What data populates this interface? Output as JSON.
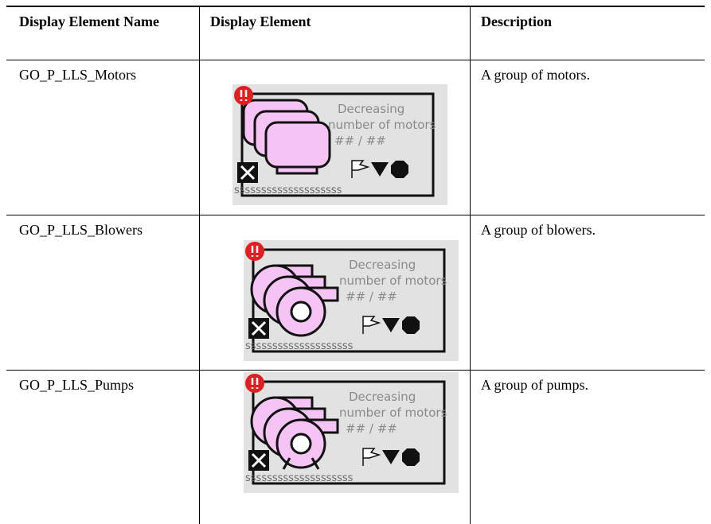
{
  "table": {
    "header": [
      "Display Element Name",
      "Display Element",
      "Description"
    ],
    "rows": [
      {
        "name": "GO_P_LLS_Motors",
        "image": {
          "line1": "Decreasing",
          "line2": "number of motors",
          "counts": "## / ##",
          "tag": "ssssssssssssssssssss"
        },
        "description": "A group of motors."
      },
      {
        "name": "GO_P_LLS_Blowers",
        "image": {
          "line1": "Decreasing",
          "line2": "number of motors",
          "counts": "## / ##",
          "tag": "ssssssssssssssssssss"
        },
        "description": "A group of blowers."
      },
      {
        "name": "GO_P_LLS_Pumps",
        "image": {
          "line1": "Decreasing",
          "line2": "number of motors",
          "counts": "## / ##",
          "tag": "ssssssssssssssssssss"
        },
        "description": "A group of pumps."
      }
    ]
  }
}
